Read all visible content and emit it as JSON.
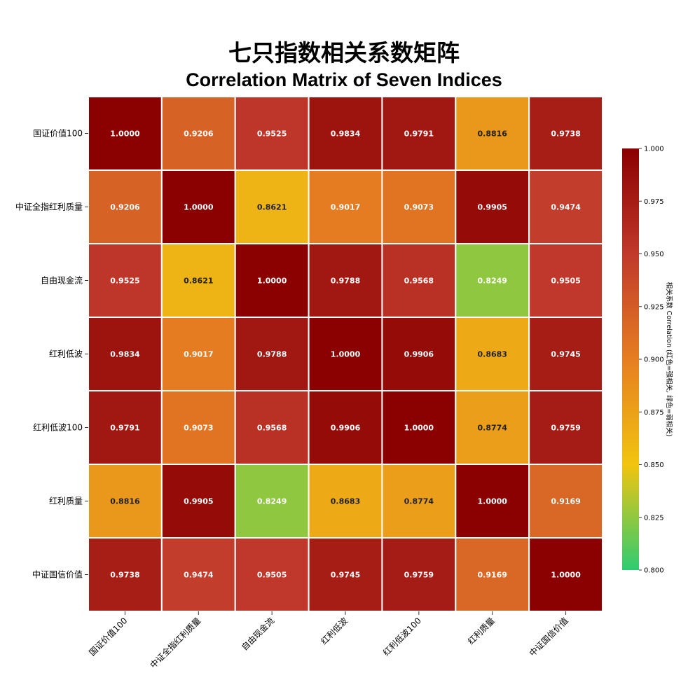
{
  "title": "七只指数相关系数矩阵",
  "subtitle": "Correlation Matrix of Seven Indices",
  "chart_data": {
    "type": "heatmap",
    "title": "七只指数相关系数矩阵",
    "subtitle": "Correlation Matrix of Seven Indices",
    "row_labels": [
      "国证价值100",
      "中证全指红利质量",
      "自由现金流",
      "红利低波",
      "红利低波100",
      "红利质量",
      "中证国信价值"
    ],
    "col_labels": [
      "国证价值100",
      "中证全指红利质量",
      "自由现金流",
      "红利低波",
      "红利低波100",
      "红利质量",
      "中证国信价值"
    ],
    "values": [
      [
        1.0,
        0.9206,
        0.9525,
        0.9834,
        0.9791,
        0.8816,
        0.9738
      ],
      [
        0.9206,
        1.0,
        0.8621,
        0.9017,
        0.9073,
        0.9905,
        0.9474
      ],
      [
        0.9525,
        0.8621,
        1.0,
        0.9788,
        0.9568,
        0.8249,
        0.9505
      ],
      [
        0.9834,
        0.9017,
        0.9788,
        1.0,
        0.9906,
        0.8683,
        0.9745
      ],
      [
        0.9791,
        0.9073,
        0.9568,
        0.9906,
        1.0,
        0.8774,
        0.9759
      ],
      [
        0.8816,
        0.9905,
        0.8249,
        0.8683,
        0.8774,
        1.0,
        0.9169
      ],
      [
        0.9738,
        0.9474,
        0.9505,
        0.9745,
        0.9759,
        0.9169,
        1.0
      ]
    ],
    "value_labels": [
      [
        "1.0000",
        "0.9206",
        "0.9525",
        "0.9834",
        "0.9791",
        "0.8816",
        "0.9738"
      ],
      [
        "0.9206",
        "1.0000",
        "0.8621",
        "0.9017",
        "0.9073",
        "0.9905",
        "0.9474"
      ],
      [
        "0.9525",
        "0.8621",
        "1.0000",
        "0.9788",
        "0.9568",
        "0.8249",
        "0.9505"
      ],
      [
        "0.9834",
        "0.9017",
        "0.9788",
        "1.0000",
        "0.9906",
        "0.8683",
        "0.9745"
      ],
      [
        "0.9791",
        "0.9073",
        "0.9568",
        "0.9906",
        "1.0000",
        "0.8774",
        "0.9759"
      ],
      [
        "0.8816",
        "0.9905",
        "0.8249",
        "0.8683",
        "0.8774",
        "1.0000",
        "0.9169"
      ],
      [
        "0.9738",
        "0.9474",
        "0.9505",
        "0.9745",
        "0.9759",
        "0.9169",
        "1.0000"
      ]
    ],
    "colorbar": {
      "label": "相关系数 Correlation (红色=强相关, 绿色=弱相关)",
      "range": [
        0.8,
        1.0
      ],
      "ticks": [
        "0.800",
        "0.825",
        "0.850",
        "0.875",
        "0.900",
        "0.925",
        "0.950",
        "0.975",
        "1.000"
      ],
      "colors": [
        "#2ecc71",
        "#f1c40f",
        "#e67e22",
        "#c0392b",
        "#8b0000"
      ]
    },
    "cell_border_color": "#ffffff"
  }
}
